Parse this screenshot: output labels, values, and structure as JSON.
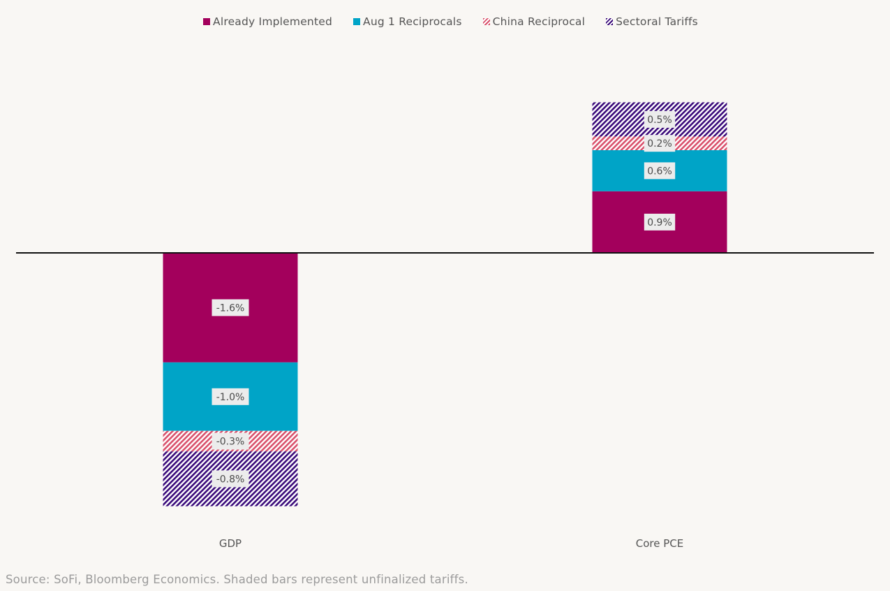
{
  "chart_data": {
    "type": "bar",
    "stacked": true,
    "title": "",
    "xlabel": "",
    "ylabel": "",
    "categories": [
      "GDP",
      "Core PCE"
    ],
    "ylim": [
      -3.7,
      2.2
    ],
    "grid": false,
    "legend_position": "top-center",
    "value_format": "percent",
    "series": [
      {
        "name": "Already Implemented",
        "color": "#a3005c",
        "pattern": "solid",
        "values": [
          -1.6,
          0.9
        ],
        "labels": [
          "-1.6%",
          "0.9%"
        ]
      },
      {
        "name": "Aug 1 Reciprocals",
        "color": "#00a4c7",
        "pattern": "solid",
        "values": [
          -1.0,
          0.6
        ],
        "labels": [
          "-1.0%",
          "0.6%"
        ]
      },
      {
        "name": "China Reciprocal",
        "color": "#d9506b",
        "pattern": "hatched",
        "values": [
          -0.3,
          0.2
        ],
        "labels": [
          "-0.3%",
          "0.2%"
        ]
      },
      {
        "name": "Sectoral Tariffs",
        "color": "#3a0a7a",
        "pattern": "hatched",
        "values": [
          -0.8,
          0.5
        ],
        "labels": [
          "-0.8%",
          "0.5%"
        ]
      }
    ]
  },
  "source_note": "Source: SoFi, Bloomberg Economics. Shaded bars represent unfinalized tariffs."
}
